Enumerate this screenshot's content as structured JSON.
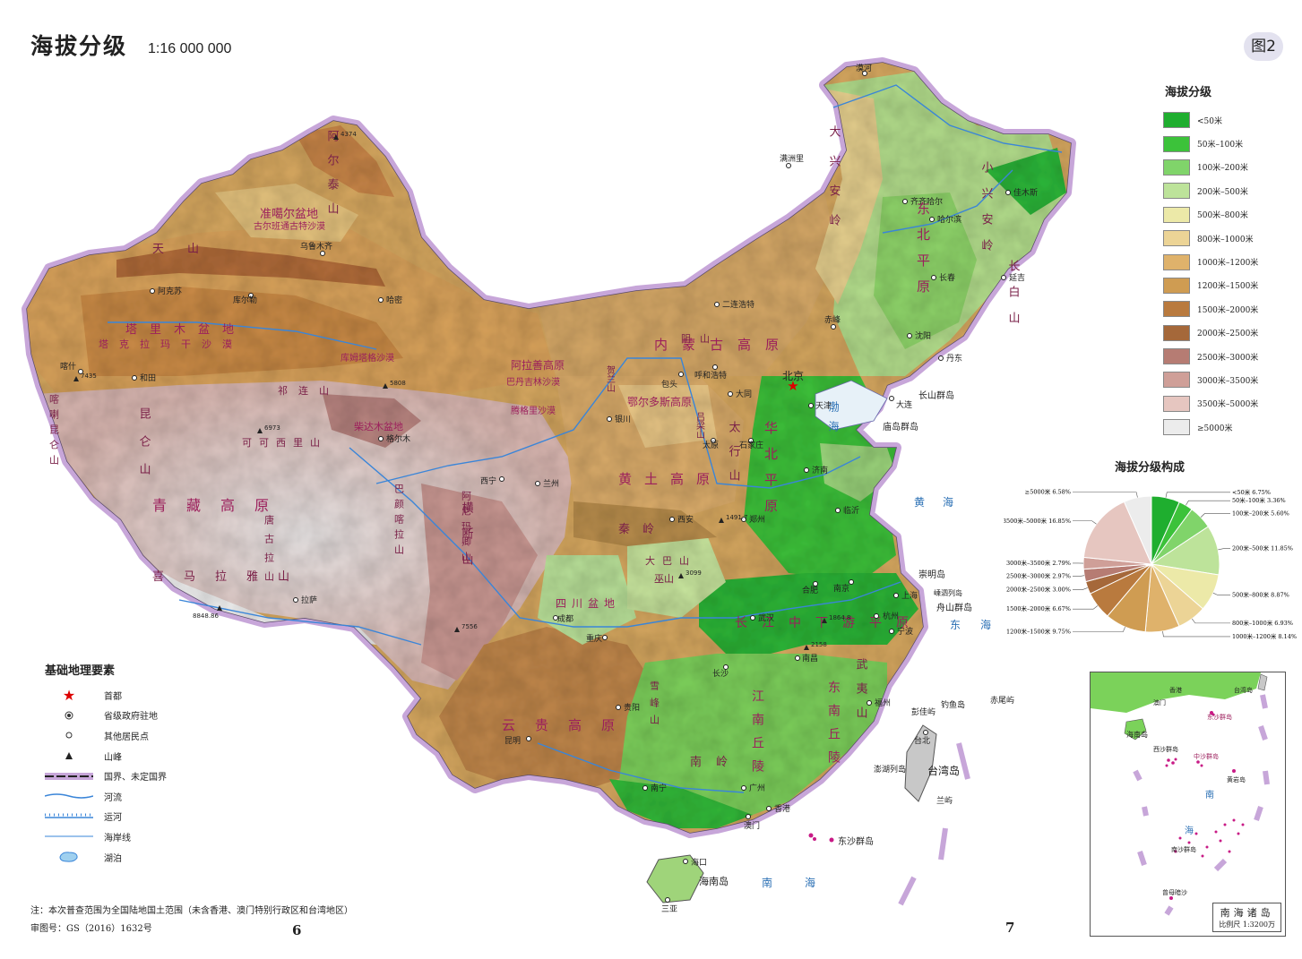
{
  "header": {
    "title": "海拔分级",
    "scale": "1:16 000 000",
    "figure_no": "图2"
  },
  "elevation_legend": {
    "title": "海拔分级",
    "classes": [
      {
        "label": "<50米",
        "color": "#1fae2f"
      },
      {
        "label": "50米–100米",
        "color": "#3cc23a"
      },
      {
        "label": "100米–200米",
        "color": "#80d46a"
      },
      {
        "label": "200米–500米",
        "color": "#bde39a"
      },
      {
        "label": "500米–800米",
        "color": "#ece9a8"
      },
      {
        "label": "800米–1000米",
        "color": "#ecd496"
      },
      {
        "label": "1000米–1200米",
        "color": "#dfb26b"
      },
      {
        "label": "1200米–1500米",
        "color": "#cf9c52"
      },
      {
        "label": "1500米–2000米",
        "color": "#b97a3e"
      },
      {
        "label": "2000米–2500米",
        "color": "#a5683a"
      },
      {
        "label": "2500米–3000米",
        "color": "#b67c73"
      },
      {
        "label": "3000米–3500米",
        "color": "#cf9f98"
      },
      {
        "label": "3500米–5000米",
        "color": "#e6c6c0"
      },
      {
        "label": "≥5000米",
        "color": "#ececec"
      }
    ]
  },
  "pie": {
    "title": "海拔分级构成",
    "labels": [
      "<50米 6.75%",
      "50米–100米 3.36%",
      "100米–200米 5.60%",
      "200米–500米 11.85%",
      "500米–800米 8.87%",
      "800米–1000米 6.93%",
      "1000米–1200米 8.14%",
      "1200米–1500米 9.75%",
      "1500米–2000米 6.67%",
      "2000米–2500米 3.00%",
      "2500米–3000米 2.97%",
      "3000米–3500米 2.79%",
      "3500米–5000米 16.85%",
      "≥5000米 6.58%"
    ]
  },
  "chart_data": {
    "type": "pie",
    "title": "海拔分级构成",
    "categories": [
      "<50米",
      "50米–100米",
      "100米–200米",
      "200米–500米",
      "500米–800米",
      "800米–1000米",
      "1000米–1200米",
      "1200米–1500米",
      "1500米–2000米",
      "2000米–2500米",
      "2500米–3000米",
      "3000米–3500米",
      "3500米–5000米",
      "≥5000米"
    ],
    "values": [
      6.75,
      3.36,
      5.6,
      11.85,
      8.87,
      6.93,
      8.14,
      9.75,
      6.67,
      3.0,
      2.97,
      2.79,
      16.85,
      6.58
    ],
    "unit": "%"
  },
  "basic_legend": {
    "title": "基础地理要素",
    "items": [
      {
        "label": "首都",
        "icon": "star-icon"
      },
      {
        "label": "省级政府驻地",
        "icon": "double-circle-icon"
      },
      {
        "label": "其他居民点",
        "icon": "circle-icon"
      },
      {
        "label": "山峰",
        "icon": "triangle-icon"
      },
      {
        "label": "国界、未定国界",
        "icon": "border-line-icon"
      },
      {
        "label": "河流",
        "icon": "river-line-icon"
      },
      {
        "label": "运河",
        "icon": "canal-line-icon"
      },
      {
        "label": "海岸线",
        "icon": "coastline-icon"
      },
      {
        "label": "湖泊",
        "icon": "lake-icon"
      }
    ]
  },
  "map_labels": {
    "regions": [
      "准噶尔盆地",
      "古尔班通古特沙漠",
      "塔里木盆地",
      "塔克拉玛干沙漠",
      "库姆塔格沙漠",
      "阿拉善高原",
      "巴丹吉林沙漠",
      "腾格里沙漠",
      "鄂尔多斯高原",
      "内蒙古高原",
      "东北平原",
      "华北平原",
      "黄土高原",
      "青藏高原",
      "四川盆地",
      "云贵高原",
      "长江中下游平原",
      "江南丘陵",
      "东南丘陵",
      "柴达木盆地"
    ],
    "mountains": [
      "阿尔泰山",
      "天山",
      "昆仑山",
      "可可西里山",
      "唐古拉山",
      "喜马拉雅山",
      "大兴安岭",
      "小兴安岭",
      "长白山",
      "太行山",
      "秦岭",
      "大巴山",
      "武夷山",
      "南岭",
      "巫山",
      "雪峰山",
      "横断山",
      "祁连山",
      "阴山",
      "贺兰山",
      "吕梁山",
      "巴颜喀拉山",
      "阿尼玛卿山",
      "喀喇昆仑山"
    ],
    "cities": [
      "北京",
      "天津",
      "石家庄",
      "太原",
      "呼和浩特",
      "沈阳",
      "长春",
      "哈尔滨",
      "上海",
      "南京",
      "杭州",
      "合肥",
      "福州",
      "南昌",
      "济南",
      "郑州",
      "武汉",
      "长沙",
      "广州",
      "南宁",
      "海口",
      "重庆",
      "成都",
      "贵阳",
      "昆明",
      "拉萨",
      "西安",
      "兰州",
      "西宁",
      "银川",
      "乌鲁木齐",
      "台北",
      "香港",
      "澳门",
      "大连",
      "漠河",
      "三亚",
      "喀什",
      "和田",
      "库尔勒",
      "阿克苏",
      "哈密",
      "格尔木",
      "满洲里",
      "齐齐哈尔",
      "佳木斯",
      "延吉",
      "丹东",
      "赤峰",
      "二连浩特",
      "包头",
      "大同",
      "临沂",
      "宁波"
    ],
    "seas": [
      "渤海",
      "黄海",
      "东海",
      "南海"
    ],
    "islands": [
      "长山群岛",
      "庙岛群岛",
      "崇明岛",
      "舟山群岛",
      "嵊泗列岛",
      "钓鱼岛",
      "赤尾屿",
      "彭佳屿",
      "澎湖列岛",
      "台湾岛",
      "兰屿",
      "东沙群岛",
      "海南岛"
    ],
    "peaks": [
      "4374",
      "6973",
      "7435",
      "8848.86",
      "7556",
      "5808",
      "3099",
      "1491.7",
      "1864.8",
      "2158"
    ]
  },
  "inset": {
    "caption": "南海诸岛",
    "scale": "比例尺 1:3200万",
    "labels": [
      "台湾岛",
      "东沙群岛",
      "海南岛",
      "西沙群岛",
      "中沙群岛",
      "黄岩岛",
      "南沙群岛",
      "曾母暗沙",
      "南",
      "海",
      "香港",
      "澳门"
    ]
  },
  "footer": {
    "note": "注：本次普查范围为全国陆地国土范围（未含香港、澳门特别行政区和台湾地区）",
    "review": "审图号：GS（2016）1632号",
    "page_left": "6",
    "page_right": "7"
  }
}
